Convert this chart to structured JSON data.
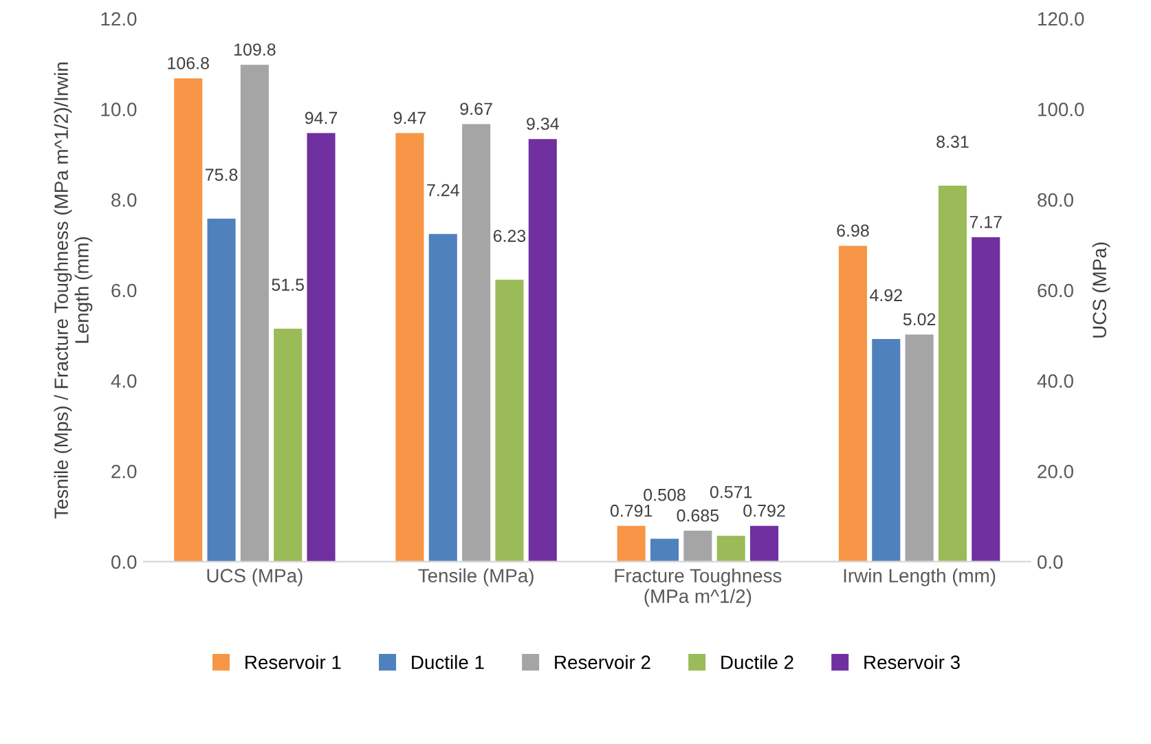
{
  "chart_data": {
    "type": "bar",
    "categories": [
      "UCS (MPa)",
      "Tensile (MPa)",
      "Fracture Toughness\n(MPa m^1/2)",
      "Irwin Length (mm)"
    ],
    "ylabel": "Tesnile (Mps) / Fracture Toughness (MPa m^1/2)/Irwin\nLength (mm)",
    "y2label": "UCS (MPa)",
    "ylim": [
      0,
      12
    ],
    "yticks": [
      {
        "value": 0,
        "label": "0.0"
      },
      {
        "value": 2,
        "label": "2.0"
      },
      {
        "value": 4,
        "label": "4.0"
      },
      {
        "value": 6,
        "label": "6.0"
      },
      {
        "value": 8,
        "label": "8.0"
      },
      {
        "value": 10,
        "label": "10.0"
      },
      {
        "value": 12,
        "label": "12.0"
      }
    ],
    "y2lim": [
      0,
      120
    ],
    "y2ticks": [
      {
        "value": 0,
        "label": "0.0"
      },
      {
        "value": 20,
        "label": "20.0"
      },
      {
        "value": 40,
        "label": "40.0"
      },
      {
        "value": 60,
        "label": "60.0"
      },
      {
        "value": 80,
        "label": "80.0"
      },
      {
        "value": 100,
        "label": "100.0"
      },
      {
        "value": 120,
        "label": "120.0"
      }
    ],
    "series": [
      {
        "name": "Reservoir 1",
        "color": "#f79646",
        "values": [
          null,
          9.47,
          0.791,
          6.98
        ]
      },
      {
        "name": "Ductile 1",
        "color": "#4f81bd",
        "values": [
          null,
          7.24,
          0.508,
          4.92
        ]
      },
      {
        "name": "Reservoir 2",
        "color": "#a5a5a5",
        "values": [
          null,
          9.67,
          0.685,
          5.02
        ]
      },
      {
        "name": "Ductile 2",
        "color": "#9bbb59",
        "values": [
          null,
          6.23,
          0.571,
          8.31
        ]
      },
      {
        "name": "Reservoir 3",
        "color": "#7030a0",
        "values": [
          null,
          9.34,
          0.792,
          7.17
        ]
      },
      {
        "axis": "y2",
        "color": "#f79646",
        "values": [
          106.8,
          null,
          null,
          null
        ]
      },
      {
        "axis": "y2",
        "color": "#4f81bd",
        "values": [
          75.8,
          null,
          null,
          null
        ]
      },
      {
        "axis": "y2",
        "color": "#a5a5a5",
        "values": [
          109.8,
          null,
          null,
          null
        ]
      },
      {
        "axis": "y2",
        "color": "#9bbb59",
        "values": [
          51.5,
          null,
          null,
          null
        ]
      },
      {
        "axis": "y2",
        "color": "#7030a0",
        "values": [
          94.7,
          null,
          null,
          null
        ]
      }
    ],
    "data_labels": true,
    "legend": "bottom",
    "grid": false
  }
}
